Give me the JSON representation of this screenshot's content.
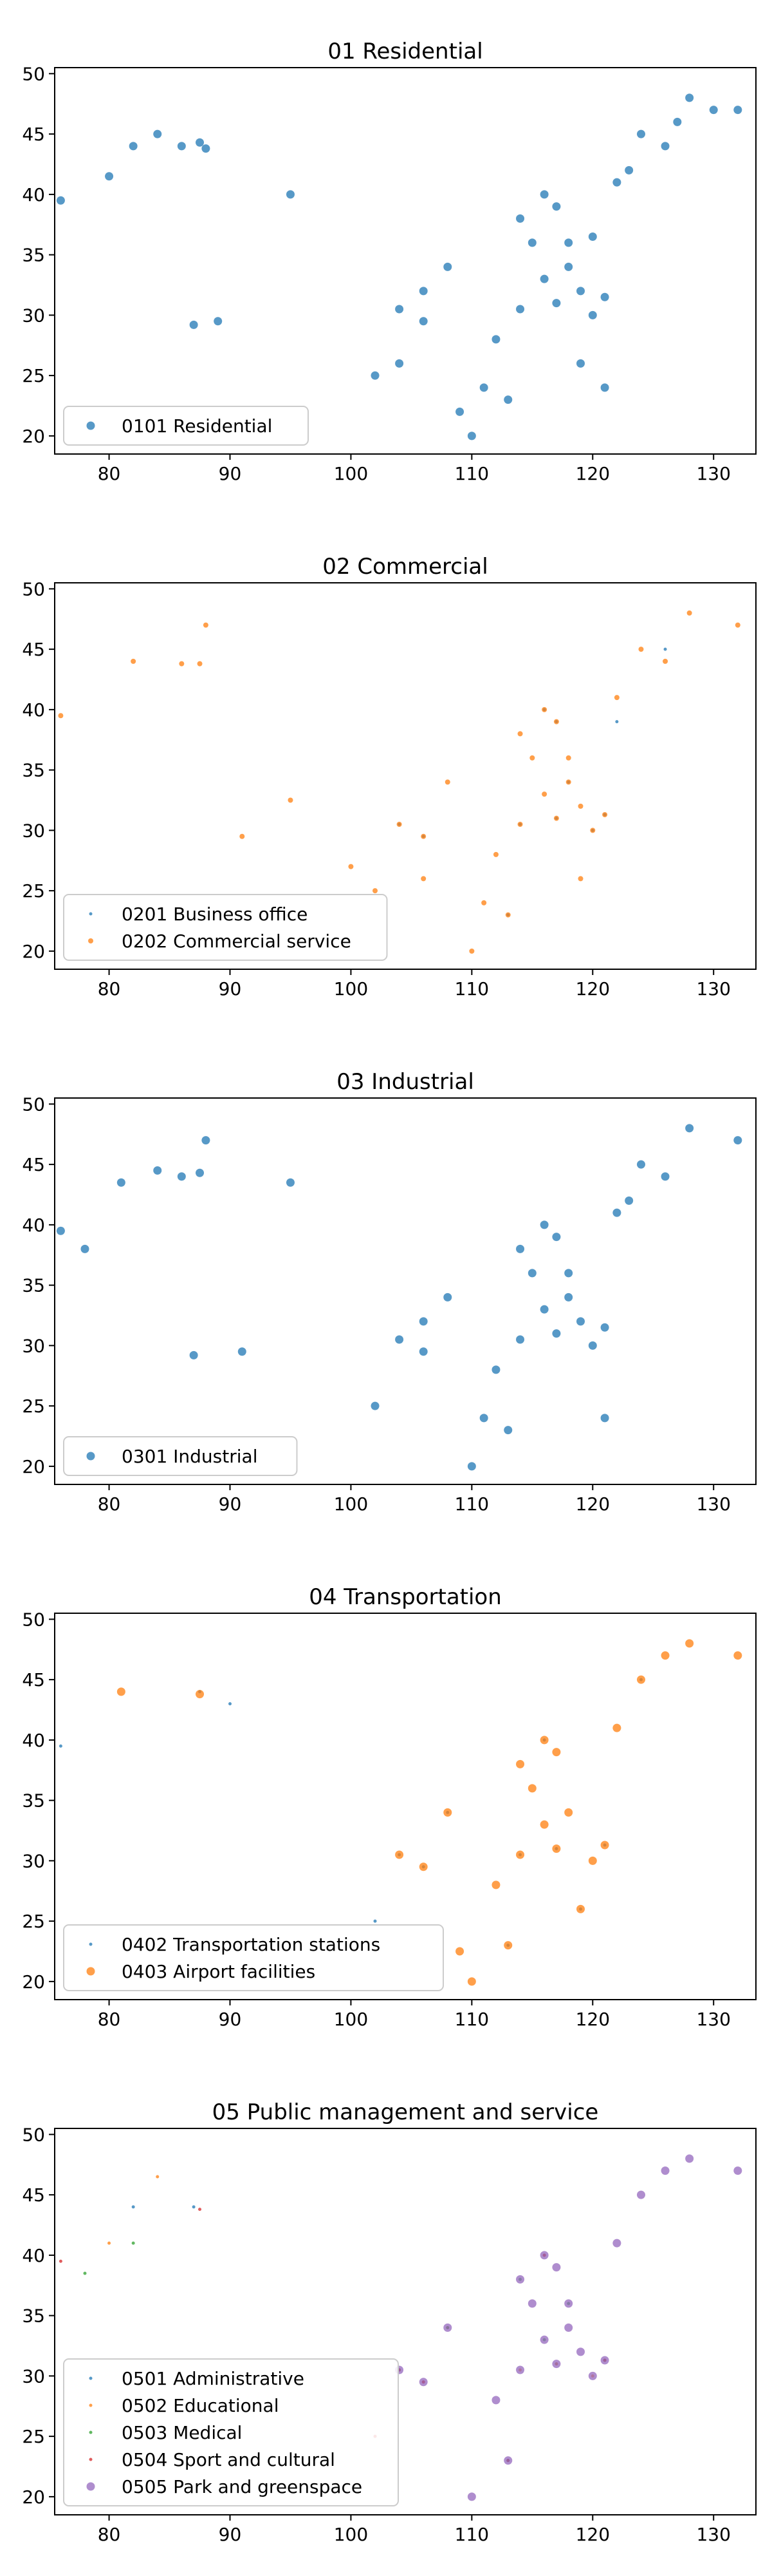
{
  "chart_data": [
    {
      "type": "scatter",
      "title": "01 Residential",
      "xlabel": "",
      "ylabel": "",
      "xlim": [
        75.5,
        133.5
      ],
      "ylim": [
        18.5,
        50.5
      ],
      "xticks": [
        "80",
        "90",
        "100",
        "110",
        "120",
        "130"
      ],
      "yticks": [
        "20",
        "25",
        "30",
        "35",
        "40",
        "45",
        "50"
      ],
      "grid": false,
      "legend": "lower-left",
      "series": [
        {
          "name": "0101 Residential",
          "color": "#1f77b4",
          "marker": "large",
          "points": [
            [
              76,
              39.5
            ],
            [
              80,
              41.5
            ],
            [
              82,
              44
            ],
            [
              84,
              45
            ],
            [
              86,
              44
            ],
            [
              87.5,
              44.3
            ],
            [
              88,
              43.8
            ],
            [
              87,
              29.2
            ],
            [
              89,
              29.5
            ],
            [
              95,
              40
            ],
            [
              102,
              25
            ],
            [
              104,
              26
            ],
            [
              104,
              30.5
            ],
            [
              106,
              29.5
            ],
            [
              106,
              32
            ],
            [
              108,
              34
            ],
            [
              109,
              22
            ],
            [
              110,
              20
            ],
            [
              111,
              24
            ],
            [
              112,
              28
            ],
            [
              113,
              23
            ],
            [
              114,
              30.5
            ],
            [
              114,
              38
            ],
            [
              115,
              36
            ],
            [
              116,
              40
            ],
            [
              116,
              33
            ],
            [
              117,
              39
            ],
            [
              117,
              31
            ],
            [
              118,
              36
            ],
            [
              118,
              34
            ],
            [
              119,
              32
            ],
            [
              119,
              26
            ],
            [
              120,
              30
            ],
            [
              120,
              36.5
            ],
            [
              121,
              31.5
            ],
            [
              121,
              24
            ],
            [
              122,
              41
            ],
            [
              123,
              42
            ],
            [
              124,
              45
            ],
            [
              126,
              44
            ],
            [
              127,
              46
            ],
            [
              128,
              48
            ],
            [
              130,
              47
            ],
            [
              132,
              47
            ]
          ]
        }
      ]
    },
    {
      "type": "scatter",
      "title": "02 Commercial",
      "xlabel": "",
      "ylabel": "",
      "xlim": [
        75.5,
        133.5
      ],
      "ylim": [
        18.5,
        50.5
      ],
      "xticks": [
        "80",
        "90",
        "100",
        "110",
        "120",
        "130"
      ],
      "yticks": [
        "20",
        "25",
        "30",
        "35",
        "40",
        "45",
        "50"
      ],
      "grid": false,
      "legend": "lower-left",
      "series": [
        {
          "name": "0201 Business office",
          "color": "#1f77b4",
          "marker": "small",
          "points": [
            [
              104,
              30.5
            ],
            [
              106,
              29.5
            ],
            [
              113,
              23
            ],
            [
              114,
              30.5
            ],
            [
              116,
              40
            ],
            [
              117,
              39
            ],
            [
              117,
              31
            ],
            [
              118,
              34
            ],
            [
              120,
              30
            ],
            [
              121,
              31.3
            ],
            [
              122,
              39
            ],
            [
              126,
              45
            ]
          ]
        },
        {
          "name": "0202 Commercial service",
          "color": "#ff7f0e",
          "marker": "medium",
          "points": [
            [
              76,
              39.5
            ],
            [
              82,
              44
            ],
            [
              86,
              43.8
            ],
            [
              87.5,
              43.8
            ],
            [
              88,
              47
            ],
            [
              91,
              29.5
            ],
            [
              95,
              32.5
            ],
            [
              100,
              27
            ],
            [
              102,
              25
            ],
            [
              104,
              30.5
            ],
            [
              106,
              29.5
            ],
            [
              106,
              26
            ],
            [
              108,
              34
            ],
            [
              110,
              20
            ],
            [
              111,
              24
            ],
            [
              112,
              28
            ],
            [
              113,
              23
            ],
            [
              114,
              30.5
            ],
            [
              114,
              38
            ],
            [
              115,
              36
            ],
            [
              116,
              40
            ],
            [
              116,
              33
            ],
            [
              117,
              39
            ],
            [
              117,
              31
            ],
            [
              118,
              36
            ],
            [
              118,
              34
            ],
            [
              119,
              32
            ],
            [
              119,
              26
            ],
            [
              120,
              30
            ],
            [
              121,
              31.3
            ],
            [
              122,
              41
            ],
            [
              124,
              45
            ],
            [
              126,
              44
            ],
            [
              128,
              48
            ],
            [
              132,
              47
            ]
          ]
        }
      ]
    },
    {
      "type": "scatter",
      "title": "03 Industrial",
      "xlabel": "",
      "ylabel": "",
      "xlim": [
        75.5,
        133.5
      ],
      "ylim": [
        18.5,
        50.5
      ],
      "xticks": [
        "80",
        "90",
        "100",
        "110",
        "120",
        "130"
      ],
      "yticks": [
        "20",
        "25",
        "30",
        "35",
        "40",
        "45",
        "50"
      ],
      "grid": false,
      "legend": "lower-left",
      "series": [
        {
          "name": "0301 Industrial",
          "color": "#1f77b4",
          "marker": "large",
          "points": [
            [
              76,
              39.5
            ],
            [
              78,
              38
            ],
            [
              81,
              43.5
            ],
            [
              84,
              44.5
            ],
            [
              86,
              44
            ],
            [
              87.5,
              44.3
            ],
            [
              88,
              47
            ],
            [
              87,
              29.2
            ],
            [
              91,
              29.5
            ],
            [
              95,
              43.5
            ],
            [
              102,
              25
            ],
            [
              104,
              30.5
            ],
            [
              106,
              29.5
            ],
            [
              106,
              32
            ],
            [
              108,
              34
            ],
            [
              110,
              20
            ],
            [
              111,
              24
            ],
            [
              112,
              28
            ],
            [
              113,
              23
            ],
            [
              114,
              30.5
            ],
            [
              114,
              38
            ],
            [
              115,
              36
            ],
            [
              116,
              40
            ],
            [
              116,
              33
            ],
            [
              117,
              39
            ],
            [
              117,
              31
            ],
            [
              118,
              36
            ],
            [
              118,
              34
            ],
            [
              119,
              32
            ],
            [
              120,
              30
            ],
            [
              121,
              31.5
            ],
            [
              121,
              24
            ],
            [
              122,
              41
            ],
            [
              123,
              42
            ],
            [
              124,
              45
            ],
            [
              126,
              44
            ],
            [
              128,
              48
            ],
            [
              132,
              47
            ]
          ]
        }
      ]
    },
    {
      "type": "scatter",
      "title": "04 Transportation",
      "xlabel": "",
      "ylabel": "",
      "xlim": [
        75.5,
        133.5
      ],
      "ylim": [
        18.5,
        50.5
      ],
      "xticks": [
        "80",
        "90",
        "100",
        "110",
        "120",
        "130"
      ],
      "yticks": [
        "20",
        "25",
        "30",
        "35",
        "40",
        "45",
        "50"
      ],
      "grid": false,
      "legend": "lower-left",
      "series": [
        {
          "name": "0402 Transportation stations",
          "color": "#1f77b4",
          "marker": "small",
          "points": [
            [
              76,
              39.5
            ],
            [
              87.5,
              44
            ],
            [
              90,
              43
            ],
            [
              102,
              25
            ],
            [
              104,
              30.5
            ],
            [
              106,
              29.5
            ],
            [
              108,
              34
            ],
            [
              113,
              23
            ],
            [
              114,
              30.5
            ],
            [
              116,
              40
            ],
            [
              117,
              31
            ],
            [
              119,
              26
            ],
            [
              121,
              31.3
            ],
            [
              124,
              45
            ]
          ]
        },
        {
          "name": "0403 Airport facilities",
          "color": "#ff7f0e",
          "marker": "large",
          "points": [
            [
              81,
              44
            ],
            [
              87.5,
              43.8
            ],
            [
              104,
              30.5
            ],
            [
              106,
              29.5
            ],
            [
              108,
              34
            ],
            [
              109,
              22.5
            ],
            [
              110,
              20
            ],
            [
              112,
              28
            ],
            [
              113,
              23
            ],
            [
              114,
              30.5
            ],
            [
              114,
              38
            ],
            [
              115,
              36
            ],
            [
              116,
              40
            ],
            [
              116,
              33
            ],
            [
              117,
              39
            ],
            [
              117,
              31
            ],
            [
              118,
              34
            ],
            [
              119,
              26
            ],
            [
              120,
              30
            ],
            [
              121,
              31.3
            ],
            [
              122,
              41
            ],
            [
              124,
              45
            ],
            [
              126,
              47
            ],
            [
              128,
              48
            ],
            [
              132,
              47
            ]
          ]
        }
      ]
    },
    {
      "type": "scatter",
      "title": "05 Public management and service",
      "xlabel": "",
      "ylabel": "",
      "xlim": [
        75.5,
        133.5
      ],
      "ylim": [
        18.5,
        50.5
      ],
      "xticks": [
        "80",
        "90",
        "100",
        "110",
        "120",
        "130"
      ],
      "yticks": [
        "20",
        "25",
        "30",
        "35",
        "40",
        "45",
        "50"
      ],
      "grid": false,
      "legend": "lower-left",
      "series": [
        {
          "name": "0501 Administrative",
          "color": "#1f77b4",
          "marker": "small",
          "points": [
            [
              82,
              44
            ],
            [
              87,
              44
            ],
            [
              104,
              30.5
            ],
            [
              106,
              29.5
            ],
            [
              113,
              23
            ],
            [
              116,
              40
            ],
            [
              117,
              31
            ],
            [
              121,
              31.3
            ]
          ]
        },
        {
          "name": "0502 Educational",
          "color": "#ff7f0e",
          "marker": "small",
          "points": [
            [
              80,
              41
            ],
            [
              84,
              46.5
            ],
            [
              104,
              30.5
            ],
            [
              106,
              29.5
            ],
            [
              108,
              34
            ],
            [
              114,
              30.5
            ],
            [
              116,
              40
            ],
            [
              117,
              31
            ],
            [
              120,
              30
            ],
            [
              121,
              31.3
            ]
          ]
        },
        {
          "name": "0503 Medical",
          "color": "#2ca02c",
          "marker": "small",
          "points": [
            [
              78,
              38.5
            ],
            [
              82,
              41
            ],
            [
              104,
              30.5
            ],
            [
              108,
              34
            ],
            [
              113,
              23
            ],
            [
              114,
              38
            ],
            [
              116,
              33
            ],
            [
              118,
              36
            ],
            [
              121,
              31.3
            ]
          ]
        },
        {
          "name": "0504 Sport and cultural",
          "color": "#d62728",
          "marker": "small",
          "points": [
            [
              76,
              39.5
            ],
            [
              87.5,
              43.8
            ],
            [
              102,
              25
            ],
            [
              104,
              30.5
            ],
            [
              106,
              29.5
            ],
            [
              113,
              23
            ],
            [
              116,
              40
            ],
            [
              121,
              31.3
            ]
          ]
        },
        {
          "name": "0505 Park and greenspace",
          "color": "#9467bd",
          "marker": "large",
          "points": [
            [
              104,
              30.5
            ],
            [
              106,
              29.5
            ],
            [
              108,
              34
            ],
            [
              110,
              20
            ],
            [
              112,
              28
            ],
            [
              113,
              23
            ],
            [
              114,
              30.5
            ],
            [
              114,
              38
            ],
            [
              115,
              36
            ],
            [
              116,
              40
            ],
            [
              116,
              33
            ],
            [
              117,
              39
            ],
            [
              117,
              31
            ],
            [
              118,
              36
            ],
            [
              118,
              34
            ],
            [
              119,
              32
            ],
            [
              120,
              30
            ],
            [
              121,
              31.3
            ],
            [
              122,
              41
            ],
            [
              124,
              45
            ],
            [
              126,
              47
            ],
            [
              128,
              48
            ],
            [
              132,
              47
            ]
          ]
        }
      ]
    }
  ]
}
